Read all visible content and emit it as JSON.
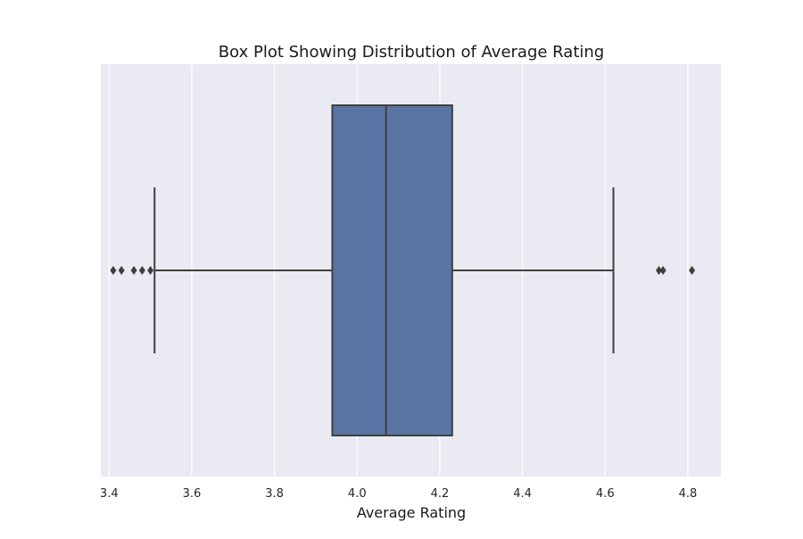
{
  "chart_data": {
    "type": "box",
    "title": "Box Plot Showing Distribution of Average Rating",
    "xlabel": "Average Rating",
    "ylabel": "",
    "xlim": [
      3.38,
      4.88
    ],
    "xticks": [
      3.4,
      3.6,
      3.8,
      4.0,
      4.2,
      4.4,
      4.6,
      4.8
    ],
    "xtick_labels": [
      "3.4",
      "3.6",
      "3.8",
      "4.0",
      "4.2",
      "4.4",
      "4.6",
      "4.8"
    ],
    "grid": true,
    "orientation": "horizontal",
    "box": {
      "whisker_low": 3.51,
      "q1": 3.94,
      "median": 4.07,
      "q3": 4.23,
      "whisker_high": 4.62
    },
    "outliers": [
      3.41,
      3.43,
      3.46,
      3.48,
      3.5,
      4.73,
      4.74,
      4.81
    ],
    "colors": {
      "background": "#eaeaf2",
      "grid": "#ffffff",
      "box_fill": "#5975a4",
      "line": "#3f3f3f",
      "text": "#262626"
    }
  }
}
